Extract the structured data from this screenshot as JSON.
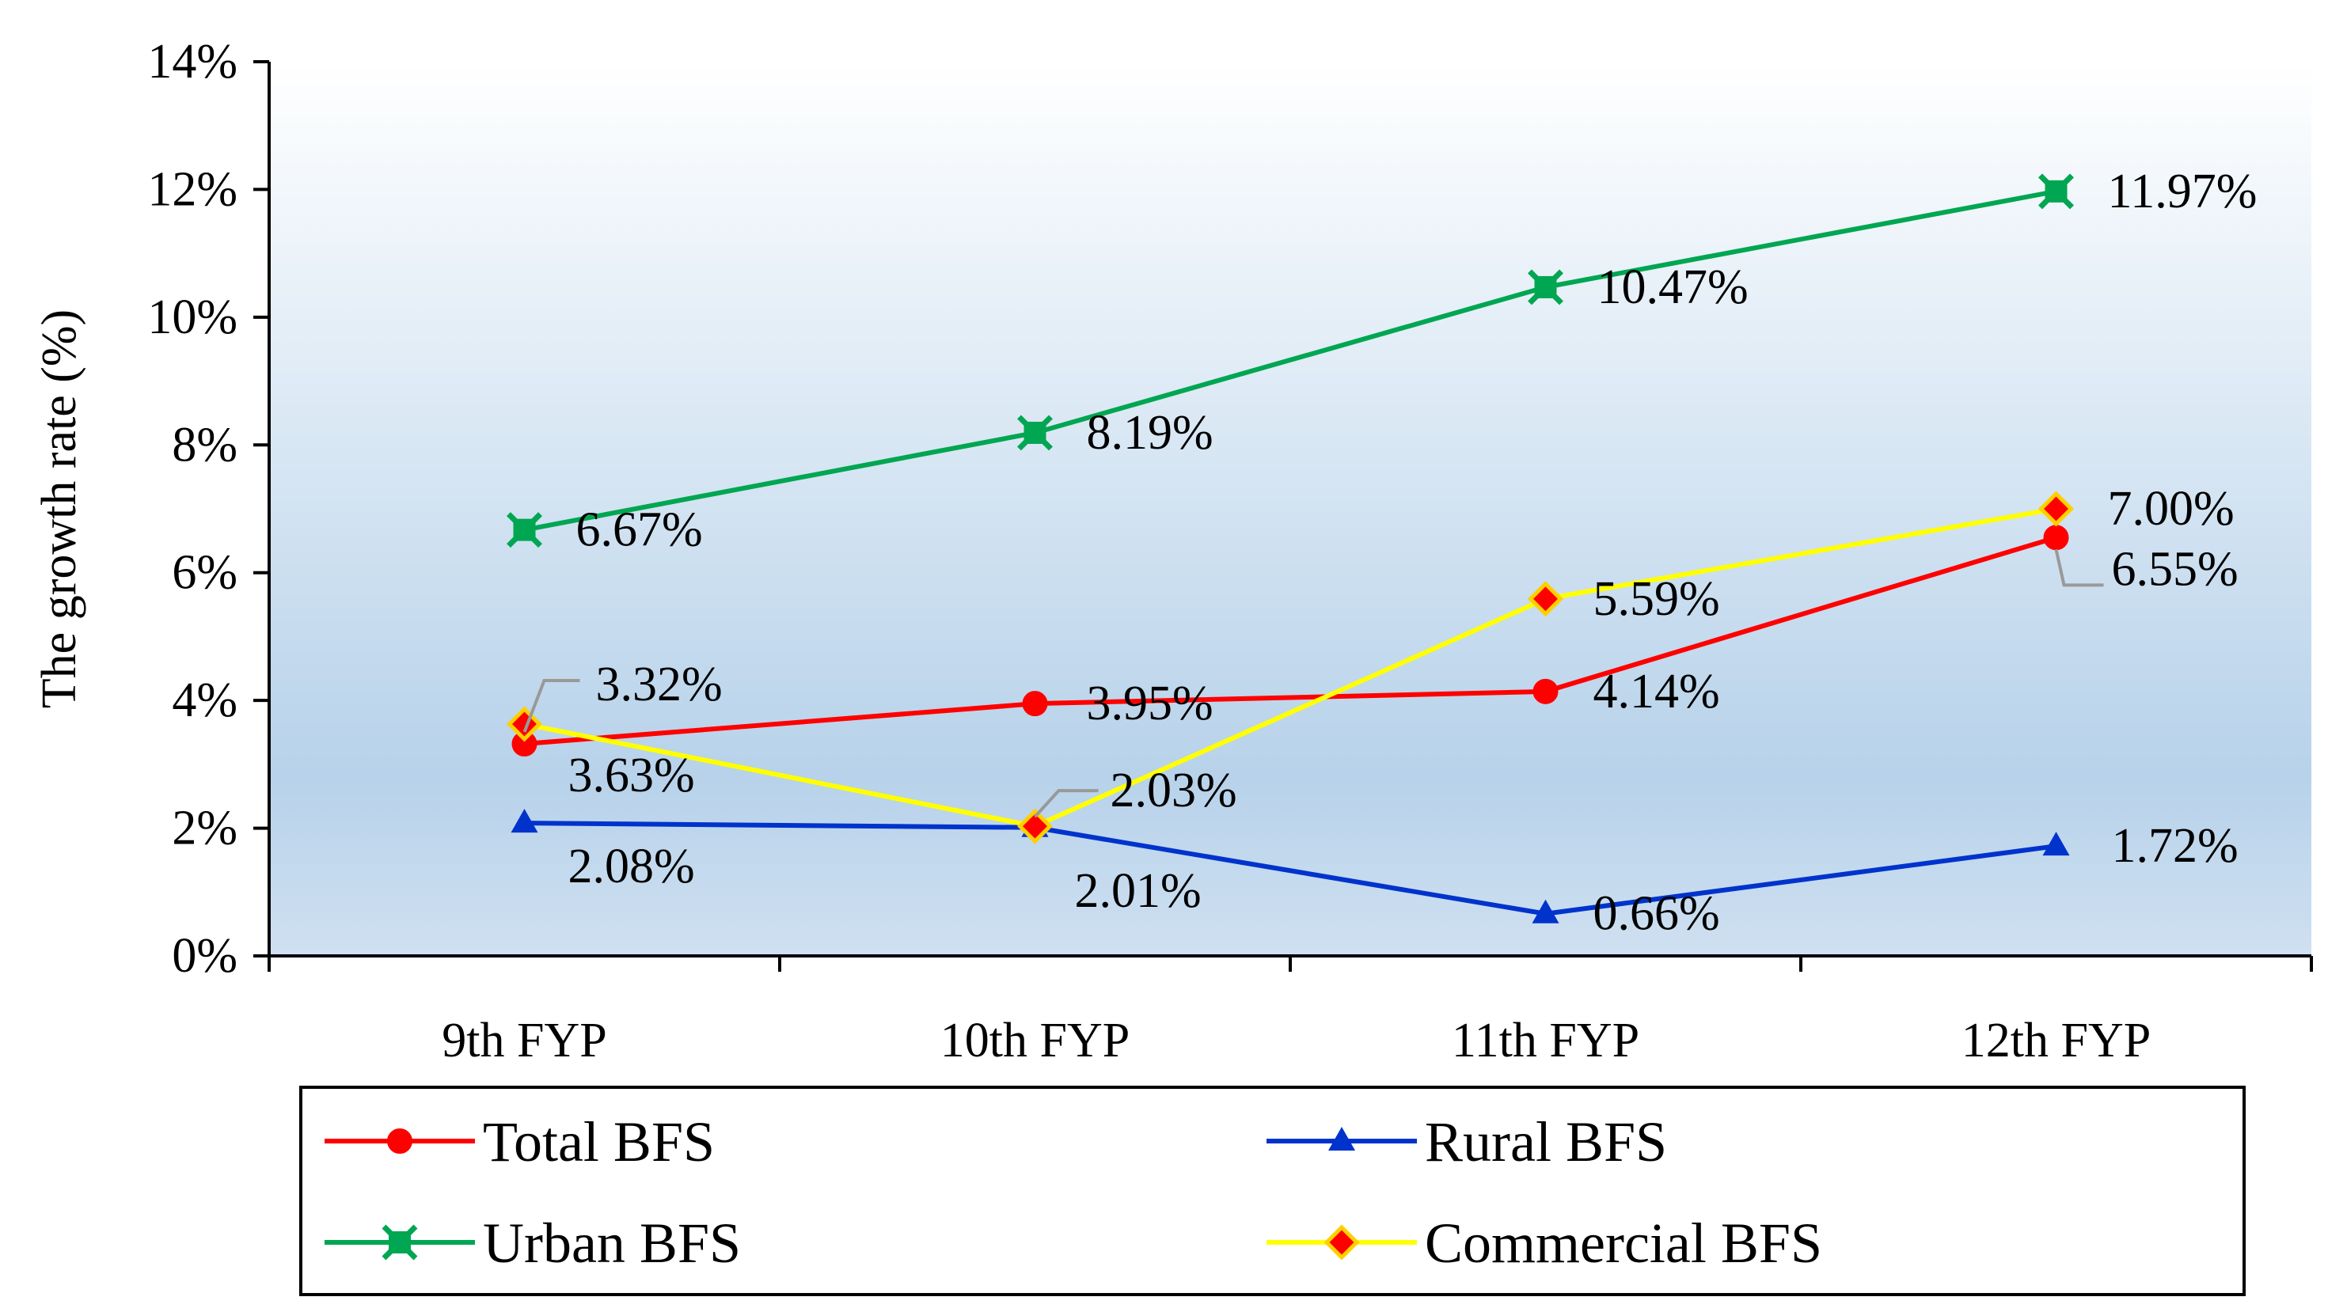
{
  "chart_data": {
    "type": "line",
    "title": "",
    "xlabel": "",
    "ylabel": "The growth rate (%)",
    "categories": [
      "9th FYP",
      "10th FYP",
      "11th FYP",
      "12th FYP"
    ],
    "ylim": [
      0,
      14
    ],
    "yticks": [
      0,
      2,
      4,
      6,
      8,
      10,
      12,
      14
    ],
    "ytick_labels": [
      "0%",
      "2%",
      "4%",
      "6%",
      "8%",
      "10%",
      "12%",
      "14%"
    ],
    "legend_position": "bottom",
    "series": [
      {
        "name": "Total BFS",
        "color": "#ff0000",
        "marker": "circle",
        "values": [
          3.32,
          3.95,
          4.14,
          6.55
        ],
        "labels": [
          "3.32%",
          "3.95%",
          "4.14%",
          "6.55%"
        ]
      },
      {
        "name": "Rural BFS",
        "color": "#0033cc",
        "marker": "triangle",
        "values": [
          2.08,
          2.01,
          0.66,
          1.72
        ],
        "labels": [
          "2.08%",
          "2.01%",
          "0.66%",
          "1.72%"
        ]
      },
      {
        "name": "Urban BFS",
        "color": "#00a651",
        "marker": "square-x",
        "values": [
          6.67,
          8.19,
          10.47,
          11.97
        ],
        "labels": [
          "6.67%",
          "8.19%",
          "10.47%",
          "11.97%"
        ]
      },
      {
        "name": "Commercial BFS",
        "color": "#ffff00",
        "marker_fill": "#ff0000",
        "marker": "diamond",
        "values": [
          3.63,
          2.03,
          5.59,
          7.0
        ],
        "labels": [
          "3.63%",
          "2.03%",
          "5.59%",
          "7.00%"
        ]
      }
    ]
  }
}
